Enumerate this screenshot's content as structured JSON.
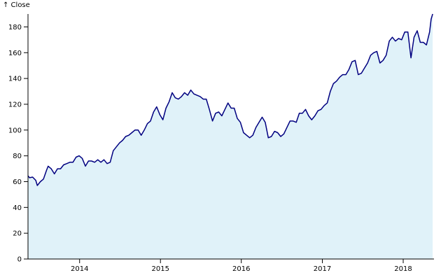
{
  "chart_data": {
    "type": "area",
    "ylabel": "↑ Close",
    "xlabel": "",
    "xlim": [
      "2013-05-13",
      "2018-05-20"
    ],
    "ylim": [
      0,
      190
    ],
    "x_ticks": [
      "2014",
      "2015",
      "2016",
      "2017",
      "2018"
    ],
    "y_ticks": [
      0,
      20,
      40,
      60,
      80,
      100,
      120,
      140,
      160,
      180
    ],
    "grid": false,
    "colors": {
      "line": "#000080",
      "fill": "#e0f2f9",
      "axis": "#000000"
    },
    "series": [
      {
        "points": [
          [
            "2013-05-13",
            64.5
          ],
          [
            "2013-05-20",
            63
          ],
          [
            "2013-06-03",
            63.5
          ],
          [
            "2013-06-17",
            61
          ],
          [
            "2013-06-24",
            57
          ],
          [
            "2013-07-08",
            60
          ],
          [
            "2013-07-22",
            62
          ],
          [
            "2013-08-05",
            69
          ],
          [
            "2013-08-12",
            72
          ],
          [
            "2013-08-26",
            70
          ],
          [
            "2013-09-09",
            66
          ],
          [
            "2013-09-23",
            70
          ],
          [
            "2013-10-07",
            70
          ],
          [
            "2013-10-21",
            73
          ],
          [
            "2013-11-04",
            74
          ],
          [
            "2013-11-18",
            75
          ],
          [
            "2013-12-02",
            75
          ],
          [
            "2013-12-16",
            79
          ],
          [
            "2013-12-30",
            80
          ],
          [
            "2014-01-13",
            78
          ],
          [
            "2014-01-27",
            72
          ],
          [
            "2014-02-10",
            76
          ],
          [
            "2014-02-24",
            76
          ],
          [
            "2014-03-10",
            75
          ],
          [
            "2014-03-24",
            77
          ],
          [
            "2014-04-07",
            75
          ],
          [
            "2014-04-21",
            77
          ],
          [
            "2014-05-05",
            74
          ],
          [
            "2014-05-19",
            75
          ],
          [
            "2014-06-02",
            84
          ],
          [
            "2014-06-16",
            87
          ],
          [
            "2014-06-30",
            90
          ],
          [
            "2014-07-14",
            92
          ],
          [
            "2014-07-28",
            95
          ],
          [
            "2014-08-11",
            96
          ],
          [
            "2014-08-25",
            98
          ],
          [
            "2014-09-08",
            100
          ],
          [
            "2014-09-22",
            100
          ],
          [
            "2014-10-06",
            96
          ],
          [
            "2014-10-20",
            100
          ],
          [
            "2014-11-03",
            105
          ],
          [
            "2014-11-17",
            107
          ],
          [
            "2014-12-01",
            114
          ],
          [
            "2014-12-15",
            118
          ],
          [
            "2014-12-29",
            112
          ],
          [
            "2015-01-12",
            108
          ],
          [
            "2015-01-26",
            117
          ],
          [
            "2015-02-09",
            122
          ],
          [
            "2015-02-23",
            129
          ],
          [
            "2015-03-09",
            125
          ],
          [
            "2015-03-23",
            124
          ],
          [
            "2015-04-06",
            126
          ],
          [
            "2015-04-20",
            129
          ],
          [
            "2015-05-04",
            127
          ],
          [
            "2015-05-18",
            131
          ],
          [
            "2015-06-01",
            128
          ],
          [
            "2015-06-15",
            127
          ],
          [
            "2015-06-29",
            126
          ],
          [
            "2015-07-13",
            124
          ],
          [
            "2015-07-27",
            124
          ],
          [
            "2015-08-10",
            116
          ],
          [
            "2015-08-24",
            107
          ],
          [
            "2015-09-07",
            113
          ],
          [
            "2015-09-21",
            114
          ],
          [
            "2015-10-05",
            111
          ],
          [
            "2015-10-19",
            116
          ],
          [
            "2015-11-02",
            121
          ],
          [
            "2015-11-16",
            117
          ],
          [
            "2015-11-30",
            117
          ],
          [
            "2015-12-14",
            109
          ],
          [
            "2015-12-28",
            106
          ],
          [
            "2016-01-11",
            98
          ],
          [
            "2016-01-25",
            96
          ],
          [
            "2016-02-08",
            94
          ],
          [
            "2016-02-22",
            96
          ],
          [
            "2016-03-07",
            102
          ],
          [
            "2016-03-21",
            106
          ],
          [
            "2016-04-04",
            110
          ],
          [
            "2016-04-18",
            106
          ],
          [
            "2016-05-02",
            94
          ],
          [
            "2016-05-16",
            95
          ],
          [
            "2016-05-30",
            99
          ],
          [
            "2016-06-13",
            98
          ],
          [
            "2016-06-27",
            95
          ],
          [
            "2016-07-11",
            97
          ],
          [
            "2016-07-25",
            102
          ],
          [
            "2016-08-08",
            107
          ],
          [
            "2016-08-22",
            107
          ],
          [
            "2016-09-05",
            106
          ],
          [
            "2016-09-19",
            113
          ],
          [
            "2016-10-03",
            113
          ],
          [
            "2016-10-17",
            116
          ],
          [
            "2016-10-31",
            111
          ],
          [
            "2016-11-14",
            108
          ],
          [
            "2016-11-28",
            111
          ],
          [
            "2016-12-12",
            115
          ],
          [
            "2016-12-26",
            116
          ],
          [
            "2017-01-09",
            119
          ],
          [
            "2017-01-23",
            121
          ],
          [
            "2017-02-06",
            130
          ],
          [
            "2017-02-20",
            136
          ],
          [
            "2017-03-06",
            138
          ],
          [
            "2017-03-20",
            141
          ],
          [
            "2017-04-03",
            143
          ],
          [
            "2017-04-17",
            143
          ],
          [
            "2017-05-01",
            147
          ],
          [
            "2017-05-15",
            153
          ],
          [
            "2017-05-29",
            154
          ],
          [
            "2017-06-12",
            143
          ],
          [
            "2017-06-26",
            144
          ],
          [
            "2017-07-10",
            148
          ],
          [
            "2017-07-24",
            152
          ],
          [
            "2017-08-07",
            158
          ],
          [
            "2017-08-21",
            160
          ],
          [
            "2017-09-04",
            161
          ],
          [
            "2017-09-18",
            152
          ],
          [
            "2017-10-02",
            154
          ],
          [
            "2017-10-16",
            158
          ],
          [
            "2017-10-30",
            169
          ],
          [
            "2017-11-13",
            172
          ],
          [
            "2017-11-27",
            169
          ],
          [
            "2017-12-11",
            171
          ],
          [
            "2017-12-25",
            170
          ],
          [
            "2018-01-08",
            176
          ],
          [
            "2018-01-22",
            176
          ],
          [
            "2018-02-05",
            156
          ],
          [
            "2018-02-19",
            172
          ],
          [
            "2018-03-05",
            177
          ],
          [
            "2018-03-19",
            168
          ],
          [
            "2018-04-02",
            168
          ],
          [
            "2018-04-16",
            166
          ],
          [
            "2018-04-30",
            176
          ],
          [
            "2018-05-07",
            186
          ],
          [
            "2018-05-14",
            190
          ]
        ]
      }
    ]
  }
}
